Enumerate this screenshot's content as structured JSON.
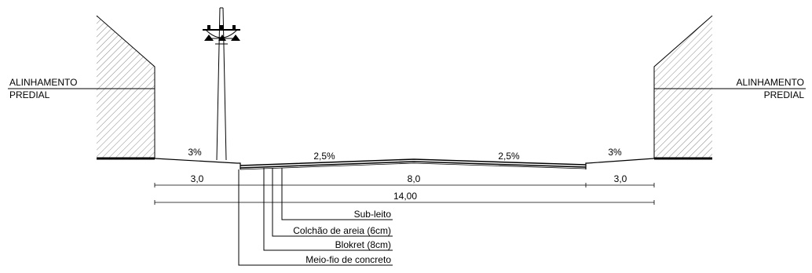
{
  "labels": {
    "alignment_left_line1": "ALINHAMENTO",
    "alignment_left_line2": "PREDIAL",
    "alignment_right_line1": "ALINHAMENTO",
    "alignment_right_line2": "PREDIAL",
    "slope_sidewalk_left": "3%",
    "slope_road_left": "2,5%",
    "slope_road_right": "2,5%",
    "slope_sidewalk_right": "3%",
    "dim_sidewalk_left": "3,0",
    "dim_road": "8,0",
    "dim_sidewalk_right": "3,0",
    "dim_total": "14,00"
  },
  "callouts": [
    "Sub-leito",
    "Colchão de areia (6cm)",
    "Blokret (8cm)",
    "Meio-fio de concreto"
  ],
  "colors": {
    "line": "#000000",
    "hatch": "#8a8a8a"
  }
}
